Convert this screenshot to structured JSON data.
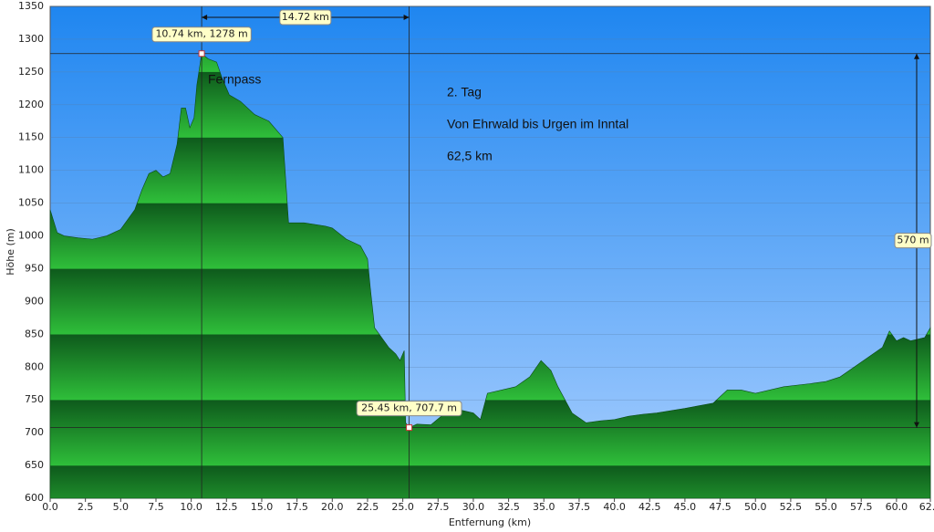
{
  "chart_data": {
    "type": "area",
    "x_label": "Entfernung   (km)",
    "y_label": "Höhe (m)",
    "x": [
      0,
      0.5,
      1,
      2,
      3,
      4,
      5,
      5.5,
      6,
      6.5,
      7,
      7.5,
      8,
      8.5,
      9,
      9.3,
      9.6,
      9.9,
      10.2,
      10.4,
      10.74,
      11.2,
      11.8,
      12.2,
      12.7,
      13.5,
      14.5,
      15.5,
      16.5,
      16.9,
      18,
      19.5,
      20,
      21,
      22,
      22.5,
      22.7,
      23,
      24,
      24.5,
      24.8,
      25.1,
      25.2,
      25.45,
      26,
      27,
      28,
      29,
      30,
      30.5,
      31,
      32,
      33,
      34,
      34.8,
      35.5,
      36,
      37,
      38,
      39,
      40,
      41,
      42,
      43,
      45,
      47,
      48,
      49,
      50,
      52,
      54,
      55,
      56,
      57,
      58,
      59,
      59.5,
      60,
      60.5,
      61,
      62,
      62.4
    ],
    "values": [
      1040,
      1005,
      1000,
      997,
      995,
      1000,
      1010,
      1025,
      1040,
      1070,
      1095,
      1100,
      1090,
      1095,
      1140,
      1195,
      1195,
      1165,
      1180,
      1230,
      1278,
      1270,
      1265,
      1240,
      1215,
      1205,
      1185,
      1175,
      1150,
      1020,
      1020,
      1015,
      1012,
      995,
      985,
      965,
      920,
      860,
      830,
      820,
      810,
      825,
      715,
      707.7,
      713,
      712,
      730,
      735,
      730,
      720,
      760,
      765,
      770,
      785,
      810,
      795,
      770,
      730,
      715,
      718,
      720,
      725,
      728,
      730,
      737,
      745,
      765,
      765,
      760,
      770,
      775,
      778,
      785,
      800,
      815,
      830,
      855,
      840,
      845,
      840,
      845,
      860
    ],
    "xlim": [
      0,
      62.4
    ],
    "ylim": [
      600,
      1350
    ],
    "xticks": [
      {
        "value": 0,
        "label": "0.0"
      },
      2.5,
      {
        "value": 5,
        "label": "5.0"
      },
      7.5,
      {
        "value": 10,
        "label": "10.0"
      },
      12.5,
      {
        "value": 15,
        "label": "15.0"
      },
      17.5,
      {
        "value": 20,
        "label": "20.0"
      },
      22.5,
      {
        "value": 25,
        "label": "25.0"
      },
      27.5,
      {
        "value": 30,
        "label": "30.0"
      },
      32.5,
      {
        "value": 35,
        "label": "35.0"
      },
      37.5,
      {
        "value": 40,
        "label": "40.0"
      },
      42.5,
      {
        "value": 45,
        "label": "45.0"
      },
      47.5,
      {
        "value": 50,
        "label": "50.0"
      },
      52.5,
      {
        "value": 55,
        "label": "55.0"
      },
      57.5,
      {
        "value": 60,
        "label": "60.0"
      },
      62.4
    ],
    "yticks": [
      600,
      650,
      700,
      750,
      800,
      850,
      900,
      950,
      1000,
      1050,
      1100,
      1150,
      1200,
      1250,
      1300,
      1350
    ],
    "grid": true,
    "markers": [
      {
        "x": 10.74,
        "y": 1278,
        "label": "10.74 km, 1278 m"
      },
      {
        "x": 25.45,
        "y": 707.7,
        "label": "25.45 km, 707.7 m"
      }
    ],
    "distance": {
      "value": 14.72,
      "label": "14.72 km"
    },
    "height_difference": {
      "value": 570,
      "label": "570 m"
    },
    "texts": [
      "Fernpass",
      "2. Tag",
      "Von Ehrwald bis Urgen im Inntal",
      "62,5 km"
    ]
  }
}
